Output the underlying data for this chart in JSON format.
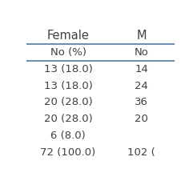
{
  "col_headers": [
    "Female",
    "M"
  ],
  "sub_headers": [
    "No (%)",
    "No"
  ],
  "rows": [
    [
      "13 (18.0)",
      "14"
    ],
    [
      "13 (18.0)",
      "24"
    ],
    [
      "20 (28.0)",
      "36"
    ],
    [
      "20 (28.0)",
      "20"
    ],
    [
      "6 (8.0)",
      ""
    ],
    [
      "72 (100.0)",
      "102 ("
    ]
  ],
  "line_color": "#7090b0",
  "text_color": "#404040",
  "bg_color": "#ffffff",
  "font_size": 9.5,
  "header_font_size": 10.5
}
